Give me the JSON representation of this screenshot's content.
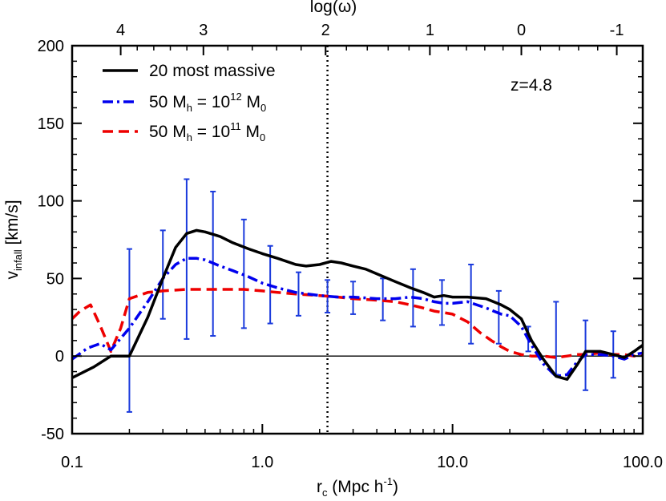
{
  "chart_data": {
    "type": "line",
    "xscale": "log",
    "xlim": [
      0.1,
      100.0
    ],
    "ylim": [
      -50,
      200
    ],
    "x_ticks": [
      {
        "value": 0.1,
        "label": "0.1"
      },
      {
        "value": 1.0,
        "label": "1.0"
      },
      {
        "value": 10.0,
        "label": "10.0"
      },
      {
        "value": 100.0,
        "label": "100.0"
      }
    ],
    "y_ticks": [
      {
        "value": -50,
        "label": "-50"
      },
      {
        "value": 0,
        "label": "0"
      },
      {
        "value": 50,
        "label": "50"
      },
      {
        "value": 100,
        "label": "100"
      },
      {
        "value": 150,
        "label": "150"
      },
      {
        "value": 200,
        "label": "200"
      }
    ],
    "top_axis": {
      "title": "log(ω)",
      "ticks": [
        {
          "r": 0.18,
          "label": "4"
        },
        {
          "r": 0.49,
          "label": "3"
        },
        {
          "r": 2.15,
          "label": "2"
        },
        {
          "r": 7.6,
          "label": "1"
        },
        {
          "r": 23.0,
          "label": "0"
        },
        {
          "r": 73.0,
          "label": "-1"
        }
      ]
    },
    "xlabel": {
      "main": "r",
      "sub": "c",
      "rest": " (Mpc  h",
      "sup": "-1",
      "end": ")"
    },
    "ylabel": {
      "main": "v",
      "sub": "infall",
      "rest": " [km/s]"
    },
    "annotation": "z=4.8",
    "vline": {
      "x": 2.2
    },
    "hline": {
      "y": 0
    },
    "legend": [
      {
        "key": "massive",
        "parts": [
          {
            "t": "20 most massive"
          }
        ]
      },
      {
        "key": "m12",
        "parts": [
          {
            "t": "50 M"
          },
          {
            "t": "h",
            "s": "sub"
          },
          {
            "t": " = 10"
          },
          {
            "t": "12",
            "s": "sup"
          },
          {
            "t": " M"
          },
          {
            "t": "0",
            "s": "sub"
          }
        ]
      },
      {
        "key": "m11",
        "parts": [
          {
            "t": "50 M"
          },
          {
            "t": "h",
            "s": "sub"
          },
          {
            "t": " = 10"
          },
          {
            "t": "11",
            "s": "sup"
          },
          {
            "t": " M"
          },
          {
            "t": "0",
            "s": "sub"
          }
        ]
      }
    ],
    "series": [
      {
        "key": "massive",
        "color": "#000000",
        "dash": "solid",
        "x": [
          0.1,
          0.13,
          0.16,
          0.2,
          0.25,
          0.3,
          0.35,
          0.4,
          0.45,
          0.5,
          0.6,
          0.7,
          0.85,
          1.0,
          1.2,
          1.5,
          1.7,
          2.0,
          2.3,
          2.6,
          3.0,
          3.5,
          4.0,
          5.0,
          6.0,
          7.0,
          8.0,
          9.0,
          10.0,
          12.0,
          15.0,
          18.0,
          20.0,
          23.0,
          26.0,
          30.0,
          35.0,
          40.0,
          45.0,
          50.0,
          60.0,
          70.0,
          80.0,
          90.0,
          100.0
        ],
        "y": [
          -14,
          -7,
          0,
          0,
          25,
          50,
          70,
          79,
          81,
          80,
          77,
          73,
          69,
          66,
          63,
          59,
          58,
          59,
          61,
          60,
          58,
          56,
          53,
          48,
          44,
          41,
          38,
          39,
          38,
          38,
          37,
          33,
          30,
          24,
          10,
          -2,
          -13,
          -15,
          -6,
          3,
          3,
          1,
          -1,
          3,
          7
        ]
      },
      {
        "key": "m12",
        "color": "#0000ee",
        "dash": "dashdot",
        "x": [
          0.1,
          0.12,
          0.14,
          0.16,
          0.2,
          0.25,
          0.3,
          0.35,
          0.4,
          0.45,
          0.5,
          0.6,
          0.7,
          0.85,
          1.0,
          1.2,
          1.5,
          2.0,
          2.5,
          3.0,
          4.0,
          5.0,
          6.0,
          7.0,
          8.0,
          9.0,
          10.0,
          12.0,
          15.0,
          18.0,
          20.0,
          23.0,
          26.0,
          30.0,
          35.0,
          40.0,
          45.0,
          50.0,
          60.0,
          70.0,
          80.0,
          90.0,
          100.0
        ],
        "y": [
          -2,
          5,
          8,
          4,
          18,
          35,
          50,
          59,
          63,
          63,
          62,
          58,
          55,
          51,
          47,
          44,
          41,
          39,
          38,
          38,
          37,
          37,
          38,
          37,
          35,
          34,
          34,
          35,
          31,
          27,
          26,
          19,
          7,
          -5,
          -13,
          -12,
          -4,
          1,
          1,
          0,
          -2,
          1,
          2
        ]
      },
      {
        "key": "m11",
        "color": "#ee0000",
        "dash": "dashed",
        "x": [
          0.1,
          0.11,
          0.125,
          0.14,
          0.16,
          0.18,
          0.2,
          0.25,
          0.3,
          0.4,
          0.5,
          0.6,
          0.8,
          1.0,
          1.2,
          1.5,
          2.0,
          2.5,
          3.0,
          4.0,
          5.0,
          6.0,
          7.0,
          8.0,
          9.0,
          10.0,
          12.0,
          14.0,
          16.0,
          18.0,
          20.0,
          23.0,
          26.0,
          30.0,
          35.0,
          40.0,
          45.0,
          50.0,
          60.0,
          70.0,
          80.0,
          90.0,
          100.0
        ],
        "y": [
          24,
          29,
          33,
          20,
          3,
          18,
          37,
          41,
          42,
          43,
          43,
          43,
          43,
          42,
          41,
          40,
          39,
          38,
          37,
          36,
          35,
          33,
          31,
          29,
          28,
          27,
          22,
          15,
          10,
          6,
          3,
          1,
          0,
          0,
          -1,
          0,
          1,
          1,
          2,
          1,
          1,
          0,
          1
        ]
      }
    ],
    "error_bars": {
      "color": "#1a3adc",
      "points": [
        {
          "x": 0.2,
          "low": -36,
          "high": 69
        },
        {
          "x": 0.3,
          "low": 24,
          "high": 81
        },
        {
          "x": 0.4,
          "low": 11,
          "high": 114
        },
        {
          "x": 0.55,
          "low": 13,
          "high": 106
        },
        {
          "x": 0.8,
          "low": 18,
          "high": 88
        },
        {
          "x": 1.1,
          "low": 21,
          "high": 71
        },
        {
          "x": 1.55,
          "low": 26,
          "high": 54
        },
        {
          "x": 2.2,
          "low": 28,
          "high": 49
        },
        {
          "x": 3.0,
          "low": 27,
          "high": 48
        },
        {
          "x": 4.3,
          "low": 23,
          "high": 50
        },
        {
          "x": 6.2,
          "low": 19,
          "high": 56
        },
        {
          "x": 8.8,
          "low": 20,
          "high": 49
        },
        {
          "x": 12.5,
          "low": 8,
          "high": 59
        },
        {
          "x": 17.5,
          "low": 8,
          "high": 42
        },
        {
          "x": 25.0,
          "low": 3,
          "high": 19
        },
        {
          "x": 35.0,
          "low": -12,
          "high": 35
        },
        {
          "x": 50.0,
          "low": -22,
          "high": 23
        },
        {
          "x": 70.0,
          "low": -14,
          "high": 16
        }
      ]
    }
  }
}
